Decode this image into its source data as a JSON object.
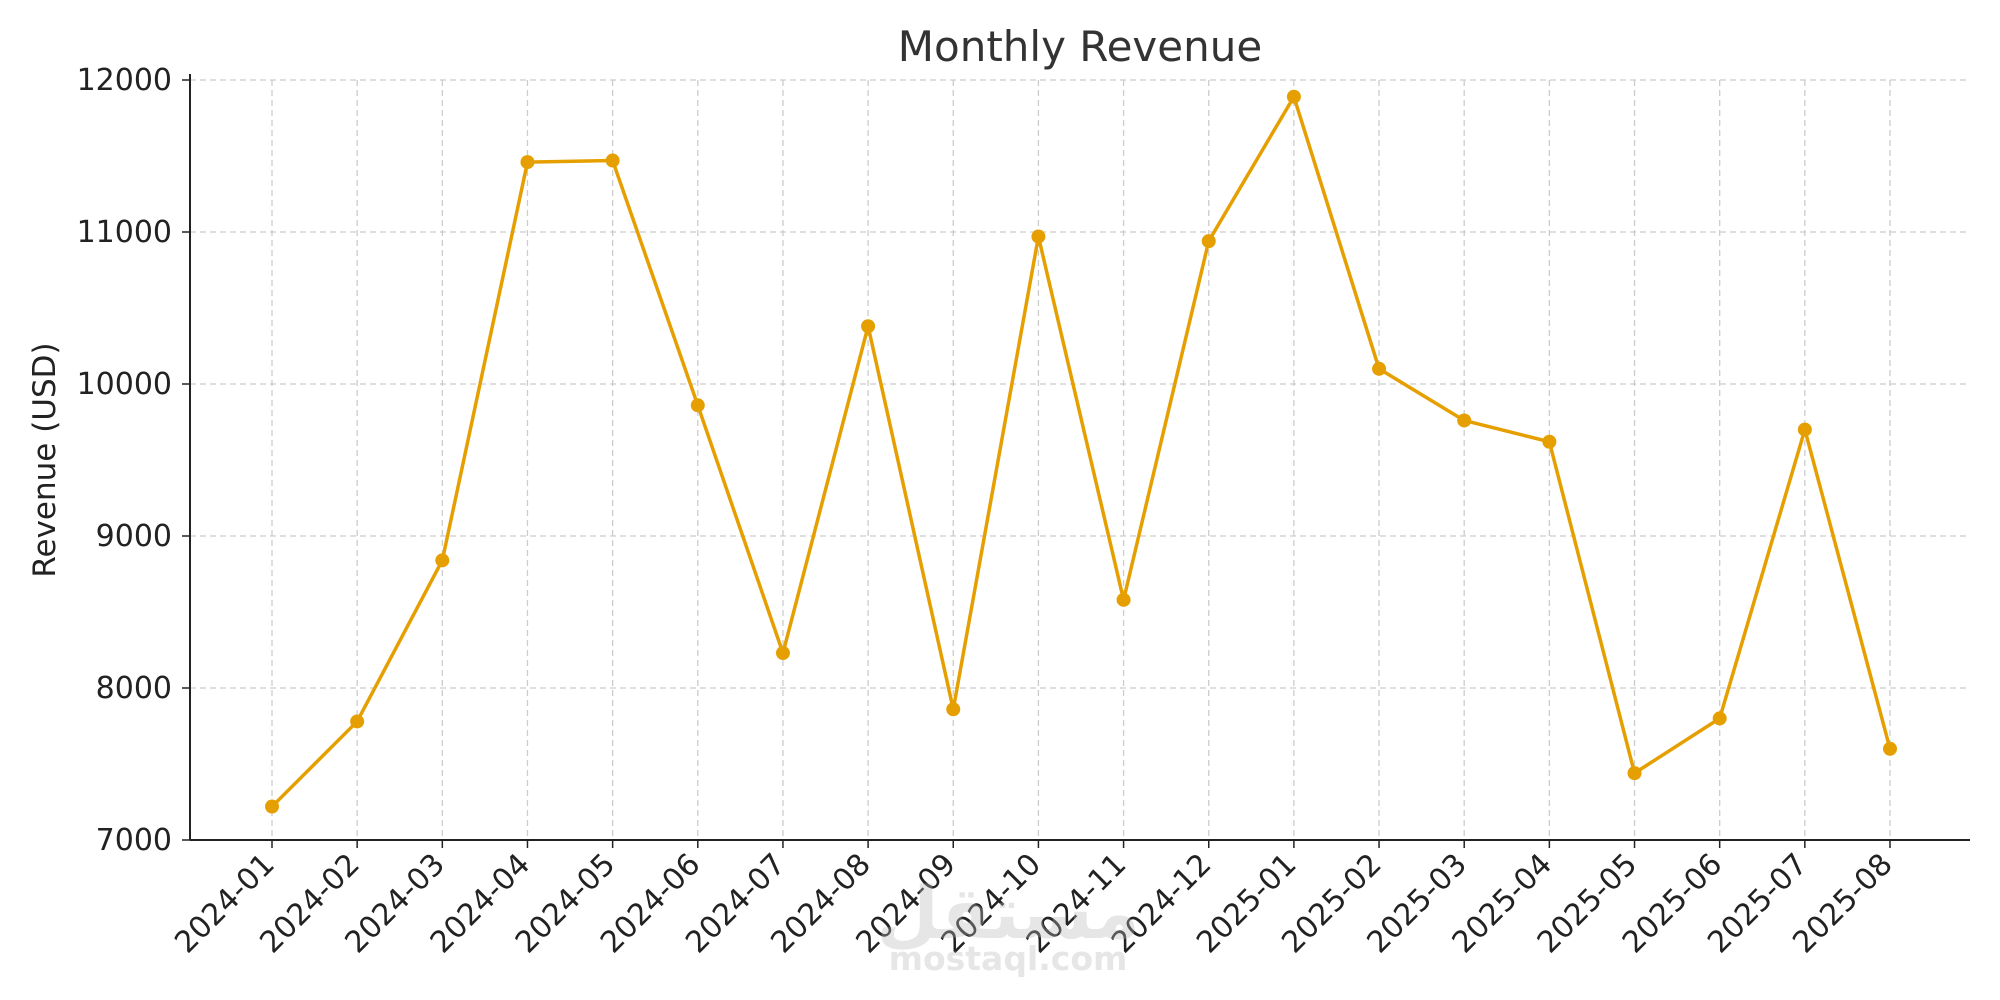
{
  "chart_data": {
    "type": "line",
    "title": "Monthly Revenue",
    "xlabel": "",
    "ylabel": "Revenue (USD)",
    "categories": [
      "2024-01",
      "2024-02",
      "2024-03",
      "2024-04",
      "2024-05",
      "2024-06",
      "2024-07",
      "2024-08",
      "2024-09",
      "2024-10",
      "2024-11",
      "2024-12",
      "2025-01",
      "2025-02",
      "2025-03",
      "2025-04",
      "2025-05",
      "2025-06",
      "2025-07",
      "2025-08"
    ],
    "series": [
      {
        "values": [
          7220,
          7780,
          8840,
          11460,
          11470,
          9860,
          8230,
          10380,
          7860,
          10970,
          8580,
          10940,
          11890,
          10100,
          9760,
          9620,
          7440,
          7800,
          9700,
          7600
        ]
      }
    ],
    "yticks": [
      7000,
      8000,
      9000,
      10000,
      11000,
      12000
    ],
    "ylim": [
      7000,
      12000
    ],
    "grid": true,
    "line_color": "#E69F00",
    "grid_color": "#cccccc",
    "axis_color": "#222222",
    "watermark": {
      "text": "مستقل",
      "subtext": "mostaql.com"
    }
  }
}
